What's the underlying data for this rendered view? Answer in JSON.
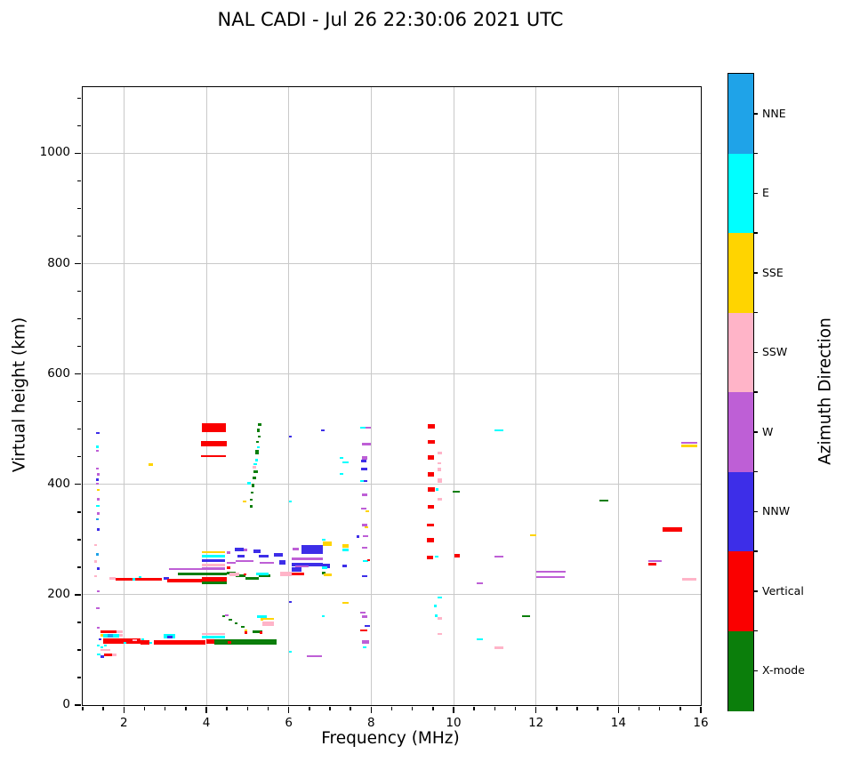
{
  "title": "NAL CADI - Jul 26 22:30:06 2021 UTC",
  "axes": {
    "x": {
      "label": "Frequency (MHz)",
      "min": 1,
      "max": 16,
      "major_ticks": [
        2,
        4,
        6,
        8,
        10,
        12,
        14,
        16
      ],
      "major_tick_labels": [
        "2",
        "4",
        "6",
        "8",
        "10",
        "12",
        "14",
        "16"
      ],
      "minor_step": 0.5
    },
    "y": {
      "label": "Virtual height (km)",
      "min": 0,
      "max": 1120,
      "major_ticks": [
        0,
        200,
        400,
        600,
        800,
        1000
      ],
      "major_tick_labels": [
        "0",
        "200",
        "400",
        "600",
        "800",
        "1000"
      ],
      "minor_step": 50
    }
  },
  "colorbar": {
    "label": "Azimuth Direction",
    "categories_top_to_bottom": [
      {
        "key": "NNE",
        "label": "NNE",
        "color": "#1FA3E8"
      },
      {
        "key": "E",
        "label": "E",
        "color": "#00FFFF"
      },
      {
        "key": "SSE",
        "label": "SSE",
        "color": "#FFD400"
      },
      {
        "key": "SSW",
        "label": "SSW",
        "color": "#FFB4C8"
      },
      {
        "key": "W",
        "label": "W",
        "color": "#BE5FD6"
      },
      {
        "key": "NNW",
        "label": "NNW",
        "color": "#3D2EE8"
      },
      {
        "key": "V",
        "label": "Vertical",
        "color": "#FA0000"
      },
      {
        "key": "X",
        "label": "X-mode",
        "color": "#0B7E0B"
      }
    ]
  },
  "chart_data": {
    "type": "scatter",
    "title": "NAL CADI - Jul 26 22:30:06 2021 UTC",
    "xlabel": "Frequency (MHz)",
    "ylabel": "Virtual height (km)",
    "xlim": [
      1,
      16
    ],
    "ylim": [
      0,
      1120
    ],
    "xticks": [
      2,
      4,
      6,
      8,
      10,
      12,
      14,
      16
    ],
    "yticks": [
      0,
      200,
      400,
      600,
      800,
      1000
    ],
    "grid": true,
    "legend_position": "right-colorbar",
    "categories": {
      "NNE": "#1FA3E8",
      "E": "#00FFFF",
      "SSE": "#FFD400",
      "SSW": "#FFB4C8",
      "W": "#BE5FD6",
      "NNW": "#3D2EE8",
      "V": "#FA0000",
      "X": "#0B7E0B"
    },
    "point_format": "[freq_start_MHz, freq_end_MHz, virtual_height_km, direction_key, thickness_km]",
    "points": [
      [
        1.32,
        1.41,
        493,
        "NNW",
        4
      ],
      [
        1.32,
        1.39,
        468,
        "E",
        4
      ],
      [
        1.32,
        1.39,
        461,
        "W",
        4
      ],
      [
        1.32,
        1.39,
        429,
        "W",
        4
      ],
      [
        1.35,
        1.42,
        418,
        "W",
        4
      ],
      [
        1.32,
        1.39,
        408,
        "NNW",
        5
      ],
      [
        1.32,
        1.39,
        401,
        "W",
        4
      ],
      [
        1.35,
        1.42,
        390,
        "SSE",
        4
      ],
      [
        1.35,
        1.42,
        373,
        "W",
        4
      ],
      [
        1.32,
        1.41,
        361,
        "E",
        4
      ],
      [
        1.35,
        1.42,
        347,
        "W",
        4
      ],
      [
        1.32,
        1.39,
        337,
        "NNE",
        4
      ],
      [
        1.35,
        1.42,
        318,
        "NNW",
        4
      ],
      [
        1.28,
        1.35,
        290,
        "SSW",
        4
      ],
      [
        1.32,
        1.39,
        273,
        "NNE",
        4
      ],
      [
        1.28,
        1.35,
        260,
        "SSW",
        4
      ],
      [
        1.35,
        1.42,
        247,
        "NNW",
        4
      ],
      [
        1.28,
        1.35,
        234,
        "SSW",
        4
      ],
      [
        1.35,
        1.42,
        206,
        "W",
        4
      ],
      [
        1.33,
        1.4,
        176,
        "W",
        4
      ],
      [
        1.35,
        1.42,
        140,
        "W",
        4
      ],
      [
        1.43,
        1.83,
        133,
        "V",
        6
      ],
      [
        1.83,
        1.97,
        133,
        "SSW",
        6
      ],
      [
        1.43,
        1.49,
        127,
        "SSE",
        5
      ],
      [
        1.49,
        1.88,
        126,
        "E",
        7
      ],
      [
        1.6,
        1.74,
        126,
        "NNE",
        6
      ],
      [
        1.88,
        1.97,
        127,
        "SSW",
        5
      ],
      [
        1.39,
        1.45,
        119,
        "NNW",
        4
      ],
      [
        1.49,
        2.4,
        116,
        "V",
        10
      ],
      [
        2.2,
        2.32,
        118,
        "SSW",
        4
      ],
      [
        2.4,
        2.62,
        114,
        "V",
        8
      ],
      [
        2.62,
        2.68,
        113,
        "E",
        4
      ],
      [
        2.72,
        2.97,
        114,
        "V",
        8
      ],
      [
        2.42,
        2.49,
        119,
        "E",
        4
      ],
      [
        2.97,
        3.25,
        125,
        "E",
        9
      ],
      [
        3.05,
        3.18,
        123,
        "NNW",
        5
      ],
      [
        2.97,
        3.97,
        113,
        "V",
        8
      ],
      [
        1.99,
        2.06,
        113,
        "E",
        4
      ],
      [
        3.9,
        4.46,
        129,
        "SSW",
        4
      ],
      [
        3.9,
        4.46,
        123,
        "E",
        5
      ],
      [
        3.99,
        4.2,
        115,
        "V",
        7
      ],
      [
        4.2,
        5.7,
        114,
        "X",
        9
      ],
      [
        4.52,
        4.61,
        113,
        "V",
        5
      ],
      [
        4.38,
        4.45,
        161,
        "X",
        4
      ],
      [
        4.46,
        4.53,
        163,
        "W",
        4
      ],
      [
        4.55,
        4.62,
        155,
        "X",
        4
      ],
      [
        4.68,
        4.75,
        148,
        "X",
        4
      ],
      [
        4.85,
        4.92,
        142,
        "X",
        4
      ],
      [
        4.92,
        4.99,
        135,
        "SSE",
        4
      ],
      [
        5.12,
        5.35,
        133,
        "X",
        6
      ],
      [
        5.22,
        5.29,
        160,
        "E",
        4
      ],
      [
        5.32,
        5.39,
        155,
        "SSE",
        4
      ],
      [
        4.92,
        4.99,
        131,
        "V",
        4
      ],
      [
        5.3,
        5.37,
        131,
        "V",
        4
      ],
      [
        5.26,
        5.47,
        160,
        "E",
        4
      ],
      [
        5.32,
        5.65,
        156,
        "SSE",
        4
      ],
      [
        5.37,
        5.65,
        148,
        "SSW",
        8
      ],
      [
        1.34,
        1.4,
        108,
        "E",
        4
      ],
      [
        1.43,
        1.49,
        105,
        "E",
        4
      ],
      [
        1.52,
        1.58,
        108,
        "E",
        4
      ],
      [
        1.43,
        1.67,
        100,
        "SSW",
        4
      ],
      [
        1.34,
        1.43,
        92,
        "E",
        4
      ],
      [
        1.43,
        1.52,
        88,
        "NNW",
        4
      ],
      [
        1.52,
        1.71,
        91,
        "V",
        4
      ],
      [
        1.71,
        1.83,
        91,
        "SSW",
        4
      ],
      [
        6.44,
        6.81,
        89,
        "W",
        4
      ],
      [
        6.0,
        6.07,
        97,
        "E",
        4
      ],
      [
        1.65,
        1.8,
        230,
        "SSW",
        4
      ],
      [
        1.8,
        2.92,
        228,
        "V",
        6
      ],
      [
        2.2,
        2.27,
        228,
        "E",
        4
      ],
      [
        2.35,
        2.42,
        232,
        "E",
        4
      ],
      [
        2.96,
        3.1,
        229,
        "NNW",
        5
      ],
      [
        3.06,
        3.9,
        226,
        "V",
        7
      ],
      [
        3.1,
        3.92,
        247,
        "W",
        3
      ],
      [
        3.32,
        4.5,
        237,
        "X",
        5
      ],
      [
        3.9,
        4.5,
        222,
        "X",
        5
      ],
      [
        3.9,
        4.5,
        228,
        "V",
        8
      ],
      [
        3.9,
        4.45,
        277,
        "SSE",
        4
      ],
      [
        3.9,
        4.45,
        270,
        "E",
        4
      ],
      [
        3.9,
        4.45,
        262,
        "NNW",
        4
      ],
      [
        3.9,
        4.45,
        254,
        "SSW",
        4
      ],
      [
        3.9,
        4.45,
        247,
        "W",
        4
      ],
      [
        4.7,
        4.9,
        282,
        "NNW",
        8
      ],
      [
        4.76,
        4.92,
        270,
        "NNW",
        5
      ],
      [
        5.15,
        5.32,
        279,
        "NNW",
        6
      ],
      [
        5.28,
        5.52,
        270,
        "NNW",
        6
      ],
      [
        5.65,
        5.86,
        272,
        "NNW",
        7
      ],
      [
        5.78,
        5.92,
        258,
        "NNW",
        8
      ],
      [
        6.3,
        6.82,
        282,
        "NNW",
        16
      ],
      [
        6.08,
        6.82,
        255,
        "NNW",
        7
      ],
      [
        6.08,
        6.3,
        246,
        "NNW",
        7
      ],
      [
        6.8,
        6.99,
        252,
        "NNW",
        7
      ],
      [
        7.3,
        7.41,
        252,
        "NNW",
        4
      ],
      [
        7.64,
        7.71,
        305,
        "NNW",
        4
      ],
      [
        6.0,
        6.08,
        487,
        "NNW",
        4
      ],
      [
        6.78,
        6.86,
        498,
        "NNW",
        4
      ],
      [
        4.5,
        4.72,
        258,
        "W",
        4
      ],
      [
        4.72,
        5.15,
        261,
        "W",
        4
      ],
      [
        5.3,
        5.65,
        258,
        "W",
        4
      ],
      [
        6.08,
        6.82,
        265,
        "W",
        4
      ],
      [
        4.5,
        4.58,
        276,
        "W",
        4
      ],
      [
        4.9,
        5.0,
        281,
        "W",
        4
      ],
      [
        6.1,
        6.24,
        283,
        "W",
        4
      ],
      [
        6.16,
        6.48,
        251,
        "W",
        4
      ],
      [
        4.5,
        4.72,
        240,
        "X",
        5
      ],
      [
        4.72,
        4.95,
        234,
        "X",
        5
      ],
      [
        4.95,
        5.28,
        229,
        "X",
        5
      ],
      [
        5.28,
        5.55,
        234,
        "X",
        5
      ],
      [
        6.8,
        6.9,
        240,
        "X",
        5
      ],
      [
        6.08,
        6.38,
        238,
        "V",
        5
      ],
      [
        4.9,
        4.98,
        237,
        "V",
        4
      ],
      [
        4.5,
        4.58,
        249,
        "V",
        4
      ],
      [
        4.57,
        4.79,
        237,
        "SSW",
        6
      ],
      [
        5.8,
        6.08,
        238,
        "SSW",
        8
      ],
      [
        5.21,
        5.52,
        238,
        "E",
        5
      ],
      [
        6.8,
        6.93,
        249,
        "E",
        5
      ],
      [
        6.81,
        6.9,
        300,
        "E",
        4
      ],
      [
        6.83,
        7.05,
        292,
        "SSE",
        8
      ],
      [
        7.3,
        7.45,
        288,
        "SSE",
        6
      ],
      [
        7.3,
        7.45,
        281,
        "E",
        4
      ],
      [
        6.85,
        7.05,
        236,
        "SSE",
        5
      ],
      [
        7.3,
        7.45,
        185,
        "SSE",
        4
      ],
      [
        6.0,
        6.08,
        187,
        "NNW",
        4
      ],
      [
        6.8,
        6.88,
        161,
        "E",
        4
      ],
      [
        6.0,
        6.08,
        369,
        "E",
        4
      ],
      [
        7.24,
        7.32,
        448,
        "E",
        4
      ],
      [
        7.3,
        7.45,
        440,
        "E",
        4
      ],
      [
        7.24,
        7.32,
        419,
        "E",
        4
      ],
      [
        7.73,
        7.86,
        503,
        "E",
        4
      ],
      [
        7.86,
        7.99,
        503,
        "W",
        4
      ],
      [
        7.77,
        7.99,
        473,
        "W",
        5
      ],
      [
        7.77,
        7.9,
        448,
        "W",
        5
      ],
      [
        7.75,
        7.88,
        442,
        "NNW",
        4
      ],
      [
        7.75,
        7.9,
        428,
        "NNW",
        4
      ],
      [
        7.73,
        7.82,
        406,
        "E",
        4
      ],
      [
        7.82,
        7.91,
        406,
        "NNW",
        4
      ],
      [
        7.77,
        7.9,
        381,
        "W",
        4
      ],
      [
        7.75,
        7.88,
        356,
        "W",
        4
      ],
      [
        7.86,
        7.95,
        351,
        "SSE",
        4
      ],
      [
        7.77,
        7.9,
        326,
        "W",
        4
      ],
      [
        7.84,
        7.92,
        322,
        "SSE",
        4
      ],
      [
        7.8,
        7.92,
        306,
        "W",
        4
      ],
      [
        7.77,
        7.9,
        285,
        "W",
        4
      ],
      [
        7.8,
        7.92,
        261,
        "E",
        4
      ],
      [
        7.9,
        7.97,
        263,
        "V",
        4
      ],
      [
        7.77,
        7.9,
        234,
        "NNW",
        4
      ],
      [
        7.73,
        7.86,
        168,
        "W",
        4
      ],
      [
        7.77,
        7.9,
        160,
        "W",
        4
      ],
      [
        7.84,
        7.97,
        143,
        "NNW",
        4
      ],
      [
        7.73,
        7.9,
        135,
        "V",
        4
      ],
      [
        7.77,
        7.95,
        114,
        "W",
        7
      ],
      [
        7.8,
        7.88,
        105,
        "E",
        4
      ],
      [
        5.25,
        5.33,
        508,
        "X",
        5
      ],
      [
        5.22,
        5.3,
        498,
        "X",
        6
      ],
      [
        5.25,
        5.32,
        487,
        "X",
        4
      ],
      [
        5.2,
        5.27,
        477,
        "X",
        4
      ],
      [
        5.22,
        5.3,
        467,
        "E",
        4
      ],
      [
        5.18,
        5.28,
        458,
        "X",
        8
      ],
      [
        5.18,
        5.25,
        444,
        "E",
        4
      ],
      [
        5.15,
        5.22,
        437,
        "E",
        4
      ],
      [
        5.12,
        5.2,
        431,
        "SSW",
        4
      ],
      [
        5.15,
        5.25,
        423,
        "X",
        6
      ],
      [
        5.12,
        5.2,
        412,
        "X",
        4
      ],
      [
        5.1,
        5.17,
        398,
        "X",
        6
      ],
      [
        5.08,
        5.15,
        385,
        "X",
        4
      ],
      [
        4.89,
        4.97,
        369,
        "SSE",
        4
      ],
      [
        5.05,
        5.13,
        372,
        "X",
        4
      ],
      [
        5.06,
        5.13,
        360,
        "X",
        4
      ],
      [
        5.0,
        5.07,
        402,
        "E",
        4
      ],
      [
        3.9,
        4.47,
        503,
        "V",
        16
      ],
      [
        3.88,
        4.49,
        474,
        "V",
        9
      ],
      [
        3.86,
        4.47,
        452,
        "V",
        2
      ],
      [
        2.59,
        2.7,
        436,
        "SSE",
        4
      ],
      [
        9.37,
        9.54,
        505,
        "V",
        7
      ],
      [
        9.37,
        9.54,
        477,
        "V",
        8
      ],
      [
        9.37,
        9.52,
        449,
        "V",
        7
      ],
      [
        9.37,
        9.52,
        418,
        "V",
        8
      ],
      [
        9.37,
        9.54,
        391,
        "V",
        8
      ],
      [
        9.56,
        9.63,
        391,
        "E",
        4
      ],
      [
        9.37,
        9.52,
        359,
        "V",
        7
      ],
      [
        9.35,
        9.52,
        327,
        "V",
        5
      ],
      [
        9.35,
        9.52,
        299,
        "V",
        8
      ],
      [
        9.35,
        9.5,
        268,
        "V",
        7
      ],
      [
        9.54,
        9.63,
        269,
        "E",
        4
      ],
      [
        9.62,
        9.73,
        457,
        "SSW",
        5
      ],
      [
        9.62,
        9.7,
        438,
        "SSW",
        4
      ],
      [
        9.62,
        9.7,
        427,
        "SSW",
        5
      ],
      [
        9.62,
        9.73,
        407,
        "SSW",
        7
      ],
      [
        9.62,
        9.73,
        373,
        "SSW",
        6
      ],
      [
        9.62,
        9.73,
        195,
        "E",
        4
      ],
      [
        9.52,
        9.6,
        180,
        "E",
        4
      ],
      [
        9.54,
        9.62,
        162,
        "E",
        4
      ],
      [
        9.62,
        9.73,
        157,
        "SSW",
        6
      ],
      [
        9.62,
        9.73,
        129,
        "SSW",
        4
      ],
      [
        9.97,
        10.16,
        387,
        "X",
        4
      ],
      [
        10.03,
        10.16,
        271,
        "V",
        6
      ],
      [
        10.56,
        10.71,
        221,
        "W",
        4
      ],
      [
        10.99,
        11.2,
        269,
        "W",
        4
      ],
      [
        10.99,
        11.2,
        498,
        "E",
        4
      ],
      [
        10.56,
        10.71,
        119,
        "E",
        4
      ],
      [
        10.99,
        11.2,
        104,
        "SSW",
        4
      ],
      [
        11.66,
        11.86,
        161,
        "X",
        3
      ],
      [
        11.86,
        12.0,
        308,
        "SSE",
        4
      ],
      [
        12.01,
        12.72,
        242,
        "W",
        4
      ],
      [
        12.01,
        12.7,
        232,
        "W",
        4
      ],
      [
        13.55,
        13.76,
        370,
        "X",
        3
      ],
      [
        14.72,
        15.06,
        261,
        "W",
        3
      ],
      [
        14.72,
        14.93,
        256,
        "V",
        5
      ],
      [
        15.07,
        15.54,
        318,
        "V",
        7
      ],
      [
        15.55,
        15.9,
        228,
        "SSW",
        5
      ],
      [
        15.53,
        15.92,
        476,
        "W",
        3
      ],
      [
        15.53,
        15.92,
        470,
        "SSE",
        5
      ]
    ]
  }
}
